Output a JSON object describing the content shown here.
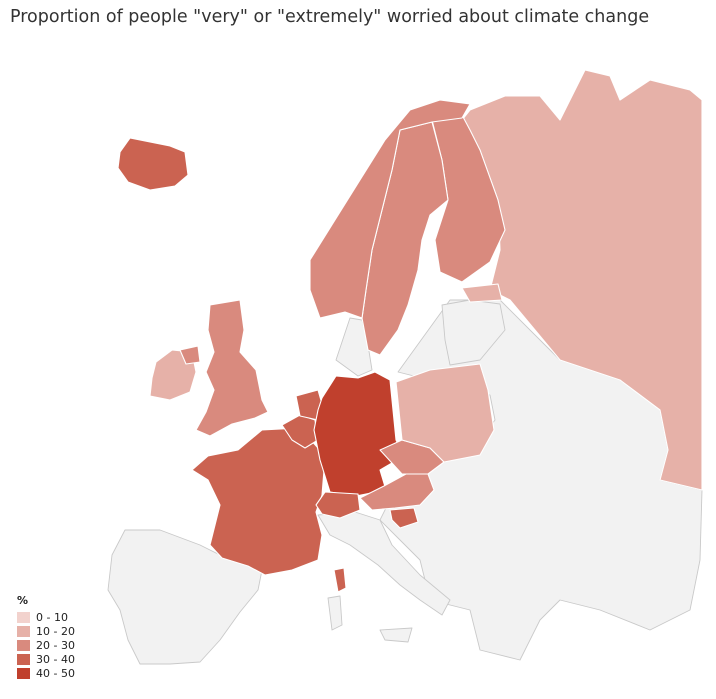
{
  "title": "Proportion of people \"very\" or \"extremely\" worried about climate change",
  "legend": {
    "title": "%",
    "items": [
      {
        "label": "0 - 10",
        "color": "#f2d2cd"
      },
      {
        "label": "10 - 20",
        "color": "#e6b1a8"
      },
      {
        "label": "20 - 30",
        "color": "#d98a7e"
      },
      {
        "label": "30 - 40",
        "color": "#cb6351"
      },
      {
        "label": "40 - 50",
        "color": "#c0402d"
      }
    ]
  },
  "countries": [
    {
      "name": "Iceland",
      "band": "30 - 40"
    },
    {
      "name": "Norway",
      "band": "20 - 30"
    },
    {
      "name": "Sweden",
      "band": "20 - 30"
    },
    {
      "name": "Finland",
      "band": "20 - 30"
    },
    {
      "name": "United Kingdom",
      "band": "20 - 30"
    },
    {
      "name": "Ireland",
      "band": "10 - 20"
    },
    {
      "name": "Netherlands",
      "band": "30 - 40"
    },
    {
      "name": "Belgium",
      "band": "30 - 40"
    },
    {
      "name": "France",
      "band": "30 - 40"
    },
    {
      "name": "Germany",
      "band": "40 - 50"
    },
    {
      "name": "Switzerland",
      "band": "30 - 40"
    },
    {
      "name": "Austria",
      "band": "20 - 30"
    },
    {
      "name": "Czech Republic",
      "band": "20 - 30"
    },
    {
      "name": "Slovenia",
      "band": "30 - 40"
    },
    {
      "name": "Poland",
      "band": "10 - 20"
    },
    {
      "name": "Russia",
      "band": "10 - 20"
    },
    {
      "name": "Estonia",
      "band": "10 - 20"
    }
  ]
}
